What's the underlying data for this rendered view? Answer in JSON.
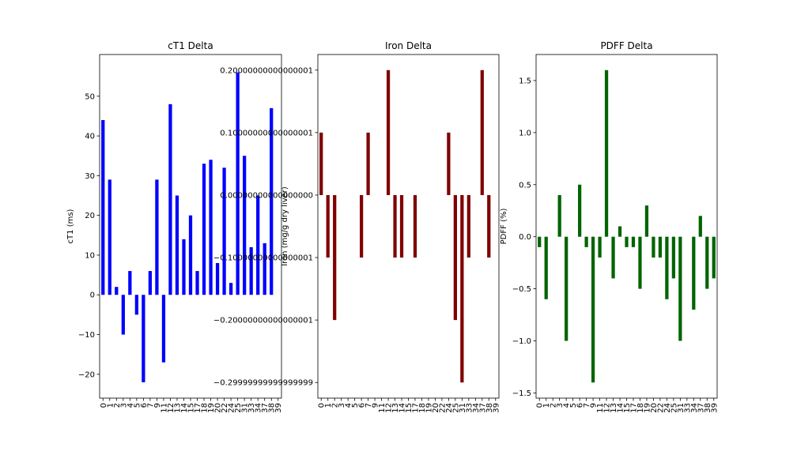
{
  "chart_data": [
    {
      "type": "bar",
      "title": "cT1 Delta",
      "xlabel": "",
      "ylabel": "cT1 (ms)",
      "color": "#0000ff",
      "ylim": [
        -26,
        60.5
      ],
      "yticks": [
        -20,
        -10,
        0,
        10,
        20,
        30,
        40,
        50
      ],
      "categories": [
        "0",
        "1",
        "2",
        "3",
        "4",
        "5",
        "6",
        "7",
        "9",
        "11",
        "12",
        "13",
        "14",
        "15",
        "17",
        "18",
        "19",
        "20",
        "22",
        "24",
        "25",
        "31",
        "33",
        "34",
        "37",
        "38",
        "39"
      ],
      "values": [
        44,
        29,
        2,
        -10,
        6,
        -5,
        -22,
        6,
        29,
        -17,
        48,
        25,
        14,
        20,
        6,
        33,
        34,
        8,
        32,
        3,
        56,
        35,
        12,
        25,
        13,
        47,
        0
      ]
    },
    {
      "type": "bar",
      "title": "Iron Delta",
      "xlabel": "",
      "ylabel": "Iron (mg/g dry liver)",
      "color": "#800000",
      "ylim": [
        -0.325,
        0.225
      ],
      "yticks": [
        -0.3,
        -0.2,
        -0.1,
        0.0,
        0.1,
        0.2
      ],
      "categories": [
        "0",
        "1",
        "2",
        "3",
        "4",
        "5",
        "6",
        "7",
        "9",
        "11",
        "12",
        "13",
        "14",
        "15",
        "17",
        "18",
        "19",
        "20",
        "22",
        "24",
        "25",
        "31",
        "33",
        "34",
        "37",
        "38",
        "39"
      ],
      "values": [
        0.1,
        -0.1,
        -0.2,
        0,
        0,
        0,
        -0.1,
        0.1,
        0,
        0,
        0.2,
        -0.1,
        -0.1,
        0,
        -0.1,
        0,
        0,
        0,
        0,
        0.1,
        -0.2,
        -0.3,
        -0.1,
        0,
        0.2,
        -0.1,
        0
      ]
    },
    {
      "type": "bar",
      "title": "PDFF Delta",
      "xlabel": "",
      "ylabel": "PDFF (%)",
      "color": "#006400",
      "ylim": [
        -1.55,
        1.75
      ],
      "yticks": [
        -1.5,
        -1.0,
        -0.5,
        0.0,
        0.5,
        1.0,
        1.5
      ],
      "categories": [
        "0",
        "1",
        "2",
        "3",
        "4",
        "5",
        "6",
        "7",
        "9",
        "11",
        "12",
        "13",
        "14",
        "15",
        "17",
        "18",
        "19",
        "20",
        "22",
        "24",
        "25",
        "31",
        "33",
        "34",
        "37",
        "38",
        "39"
      ],
      "values": [
        -0.1,
        -0.6,
        0,
        0.4,
        -1.0,
        0,
        0.5,
        -0.1,
        -1.4,
        -0.2,
        1.6,
        -0.4,
        0.1,
        -0.1,
        -0.1,
        -0.5,
        0.3,
        -0.2,
        -0.2,
        -0.6,
        -0.4,
        -1.0,
        0,
        -0.7,
        0.2,
        -0.5,
        -0.4
      ]
    }
  ]
}
